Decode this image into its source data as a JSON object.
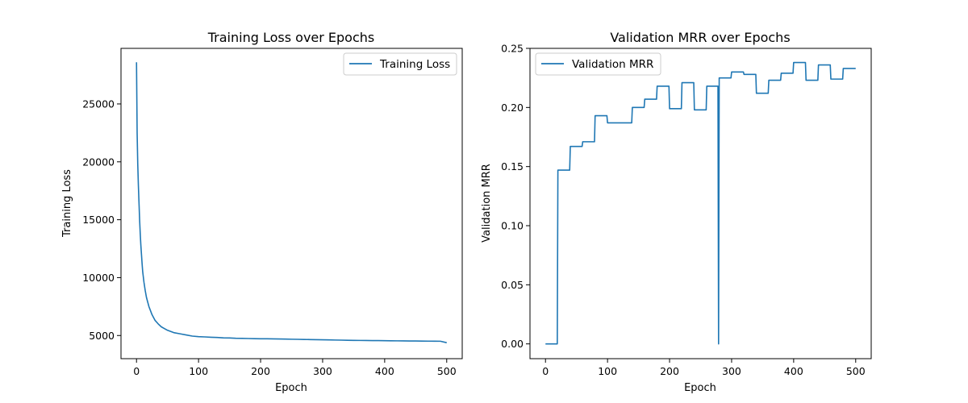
{
  "colors": {
    "series": "#1f77b4",
    "legend_border": "#cccccc"
  },
  "chart_data": [
    {
      "type": "line",
      "title": "Training Loss over Epochs",
      "xlabel": "Epoch",
      "ylabel": "Training Loss",
      "xlim": [
        -25,
        525
      ],
      "ylim": [
        3000,
        29800
      ],
      "xticks": [
        0,
        100,
        200,
        300,
        400,
        500
      ],
      "yticks": [
        5000,
        10000,
        15000,
        20000,
        25000
      ],
      "grid": false,
      "legend_position": "top-right",
      "series": [
        {
          "name": "Training Loss",
          "x": [
            0,
            1,
            2,
            3,
            4,
            5,
            6,
            7,
            8,
            9,
            10,
            12,
            14,
            16,
            18,
            20,
            25,
            30,
            35,
            40,
            45,
            50,
            60,
            70,
            80,
            90,
            100,
            110,
            120,
            130,
            140,
            150,
            160,
            170,
            180,
            190,
            200,
            210,
            220,
            230,
            240,
            250,
            260,
            270,
            280,
            290,
            300,
            310,
            320,
            330,
            340,
            350,
            360,
            370,
            380,
            390,
            400,
            410,
            420,
            430,
            440,
            450,
            460,
            470,
            480,
            490,
            500
          ],
          "y": [
            28600,
            22500,
            19800,
            18000,
            16500,
            15000,
            13800,
            12800,
            12000,
            11200,
            10500,
            9600,
            8900,
            8300,
            7900,
            7500,
            6800,
            6300,
            6000,
            5750,
            5600,
            5450,
            5250,
            5150,
            5050,
            4950,
            4900,
            4880,
            4850,
            4830,
            4800,
            4790,
            4760,
            4750,
            4740,
            4730,
            4720,
            4715,
            4710,
            4700,
            4690,
            4680,
            4670,
            4660,
            4650,
            4640,
            4630,
            4620,
            4610,
            4600,
            4590,
            4580,
            4575,
            4570,
            4565,
            4560,
            4550,
            4545,
            4540,
            4535,
            4530,
            4525,
            4520,
            4515,
            4510,
            4505,
            4380
          ]
        }
      ]
    },
    {
      "type": "line",
      "title": "Validation MRR over Epochs",
      "xlabel": "Epoch",
      "ylabel": "Validation MRR",
      "xlim": [
        -25,
        525
      ],
      "ylim": [
        -0.0125,
        0.25
      ],
      "xticks": [
        0,
        100,
        200,
        300,
        400,
        500
      ],
      "yticks": [
        0.0,
        0.05,
        0.1,
        0.15,
        0.2,
        0.25
      ],
      "ytick_labels": [
        "0.00",
        "0.05",
        "0.10",
        "0.15",
        "0.20",
        "0.25"
      ],
      "grid": false,
      "legend_position": "top-left",
      "series": [
        {
          "name": "Validation MRR",
          "x": [
            0,
            19,
            20,
            39,
            40,
            59,
            60,
            79,
            80,
            99,
            100,
            119,
            120,
            139,
            140,
            159,
            160,
            179,
            180,
            199,
            200,
            219,
            220,
            239,
            240,
            259,
            260,
            278,
            279,
            280,
            299,
            300,
            319,
            320,
            339,
            340,
            359,
            360,
            379,
            380,
            399,
            400,
            419,
            420,
            439,
            440,
            459,
            460,
            479,
            480,
            500
          ],
          "y": [
            0.0,
            0.0,
            0.147,
            0.147,
            0.167,
            0.167,
            0.171,
            0.171,
            0.193,
            0.193,
            0.187,
            0.187,
            0.187,
            0.187,
            0.2,
            0.2,
            0.207,
            0.207,
            0.218,
            0.218,
            0.199,
            0.199,
            0.221,
            0.221,
            0.198,
            0.198,
            0.218,
            0.218,
            0.0,
            0.225,
            0.225,
            0.23,
            0.23,
            0.228,
            0.228,
            0.212,
            0.212,
            0.223,
            0.223,
            0.229,
            0.229,
            0.238,
            0.238,
            0.223,
            0.223,
            0.236,
            0.236,
            0.224,
            0.224,
            0.233,
            0.233
          ]
        }
      ]
    }
  ]
}
